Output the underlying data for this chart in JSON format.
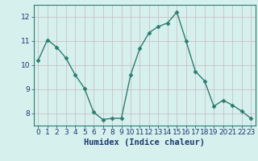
{
  "x": [
    0,
    1,
    2,
    3,
    4,
    5,
    6,
    7,
    8,
    9,
    10,
    11,
    12,
    13,
    14,
    15,
    16,
    17,
    18,
    19,
    20,
    21,
    22,
    23
  ],
  "y": [
    10.2,
    11.05,
    10.75,
    10.3,
    9.6,
    9.05,
    8.05,
    7.75,
    7.8,
    7.8,
    9.6,
    10.7,
    11.35,
    11.6,
    11.75,
    12.2,
    11.0,
    9.75,
    9.35,
    8.3,
    8.55,
    8.35,
    8.1,
    7.8
  ],
  "line_color": "#2d7d6e",
  "marker": "D",
  "marker_size": 2.5,
  "bg_color": "#d6f0ee",
  "grid_color": "#c8b8b8",
  "xlabel": "Humidex (Indice chaleur)",
  "xlabel_color": "#1a3a6e",
  "ylim": [
    7.5,
    12.5
  ],
  "xlim": [
    -0.5,
    23.5
  ],
  "yticks": [
    8,
    9,
    10,
    11,
    12
  ],
  "xticks": [
    0,
    1,
    2,
    3,
    4,
    5,
    6,
    7,
    8,
    9,
    10,
    11,
    12,
    13,
    14,
    15,
    16,
    17,
    18,
    19,
    20,
    21,
    22,
    23
  ],
  "tick_label_size": 6.5,
  "xlabel_size": 7.5,
  "tick_color": "#1a3a6e",
  "spine_color": "#2d7d6e",
  "linewidth": 1.0
}
